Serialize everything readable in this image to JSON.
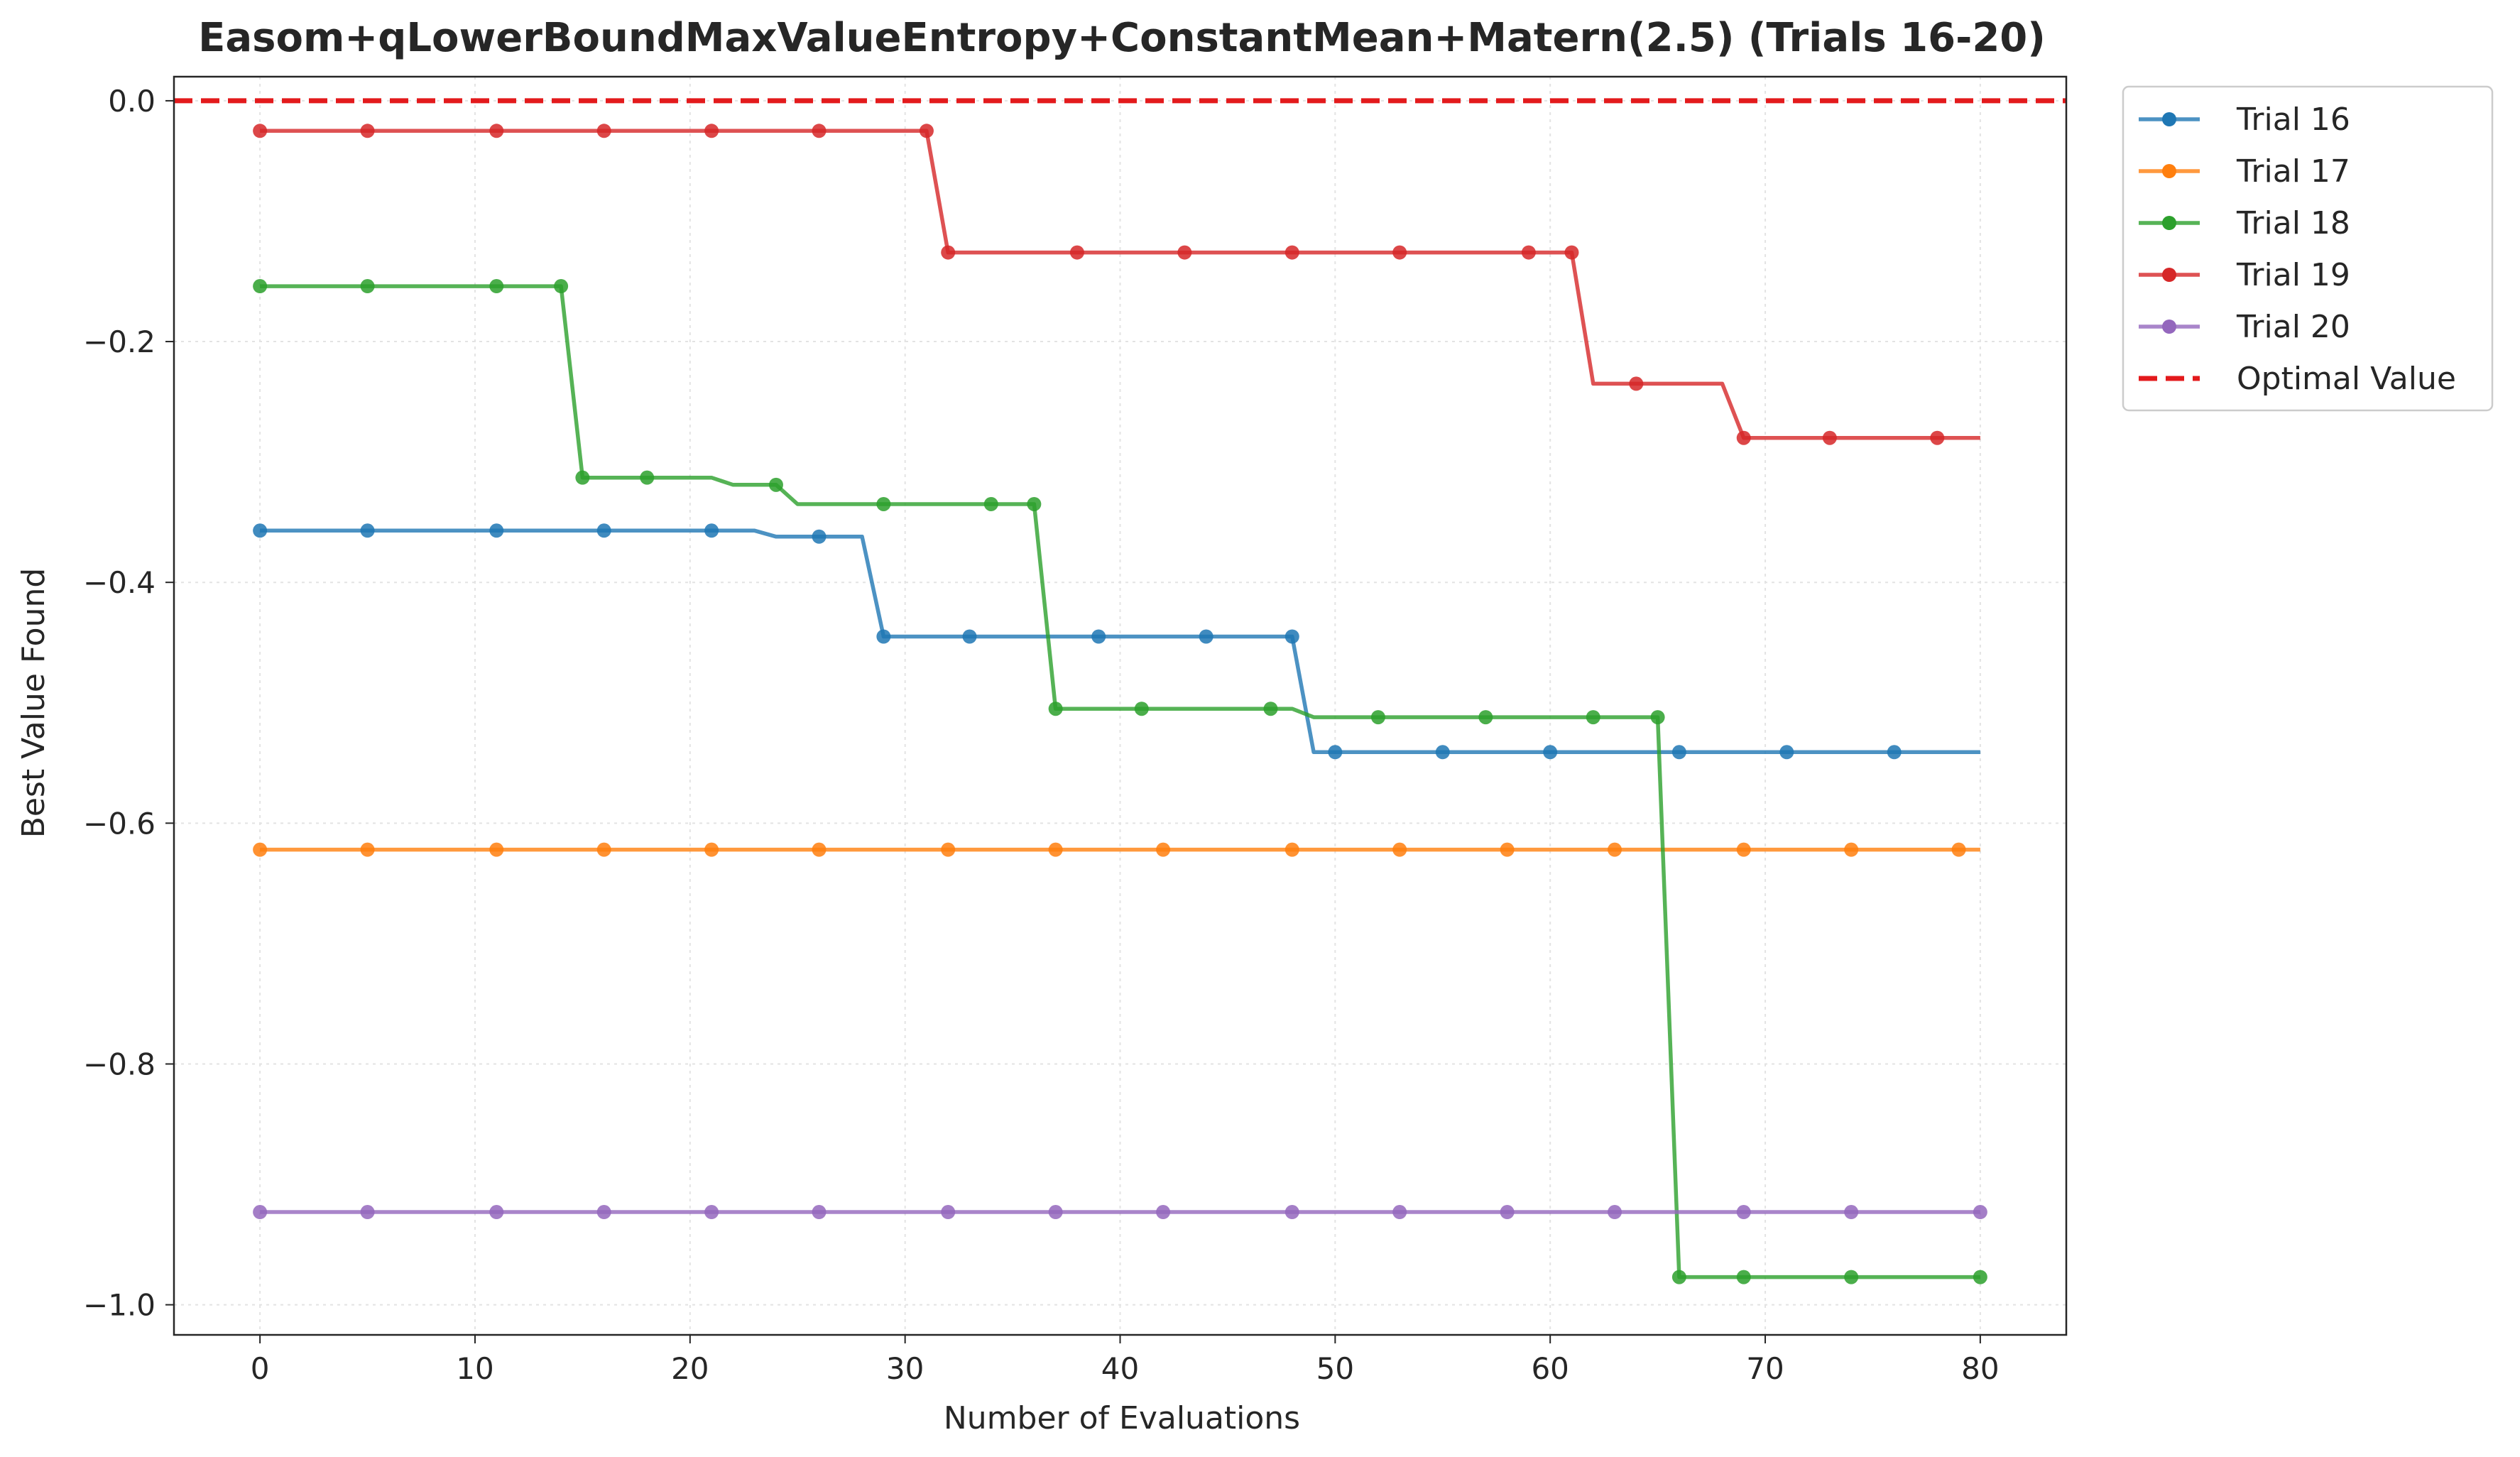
{
  "chart_data": {
    "type": "line",
    "title": "Easom+qLowerBoundMaxValueEntropy+ConstantMean+Matern(2.5) (Trials 16-20)",
    "xlabel": "Number of Evaluations",
    "ylabel": "Best Value Found",
    "xlim": [
      -4,
      84
    ],
    "ylim": [
      -1.025,
      0.02
    ],
    "x_ticks": [
      0,
      10,
      20,
      30,
      40,
      50,
      60,
      70,
      80
    ],
    "y_ticks": [
      0.0,
      -0.2,
      -0.4,
      -0.6,
      -0.8,
      -1.0
    ],
    "x_tick_labels": [
      "0",
      "10",
      "20",
      "30",
      "40",
      "50",
      "60",
      "70",
      "80"
    ],
    "y_tick_labels": [
      "0.0",
      "−0.2",
      "−0.4",
      "−0.6",
      "−0.8",
      "−1.0"
    ],
    "grid": true,
    "legend_position": "outside-top-right",
    "series": [
      {
        "name": "Trial 16",
        "color": "#1f77b4",
        "steps": [
          [
            0,
            -0.357
          ],
          [
            23,
            -0.357
          ],
          [
            24,
            -0.362
          ],
          [
            28,
            -0.362
          ],
          [
            29,
            -0.445
          ],
          [
            48,
            -0.445
          ],
          [
            49,
            -0.541
          ],
          [
            80,
            -0.541
          ]
        ],
        "markers": [
          [
            0,
            -0.357
          ],
          [
            5,
            -0.357
          ],
          [
            11,
            -0.357
          ],
          [
            16,
            -0.357
          ],
          [
            21,
            -0.357
          ],
          [
            26,
            -0.362
          ],
          [
            29,
            -0.445
          ],
          [
            33,
            -0.445
          ],
          [
            39,
            -0.445
          ],
          [
            44,
            -0.445
          ],
          [
            48,
            -0.445
          ],
          [
            50,
            -0.541
          ],
          [
            55,
            -0.541
          ],
          [
            60,
            -0.541
          ],
          [
            66,
            -0.541
          ],
          [
            71,
            -0.541
          ],
          [
            76,
            -0.541
          ]
        ]
      },
      {
        "name": "Trial 17",
        "color": "#ff7f0e",
        "steps": [
          [
            0,
            -0.622
          ],
          [
            80,
            -0.622
          ]
        ],
        "markers": [
          [
            0,
            -0.622
          ],
          [
            5,
            -0.622
          ],
          [
            11,
            -0.622
          ],
          [
            16,
            -0.622
          ],
          [
            21,
            -0.622
          ],
          [
            26,
            -0.622
          ],
          [
            32,
            -0.622
          ],
          [
            37,
            -0.622
          ],
          [
            42,
            -0.622
          ],
          [
            48,
            -0.622
          ],
          [
            53,
            -0.622
          ],
          [
            58,
            -0.622
          ],
          [
            63,
            -0.622
          ],
          [
            69,
            -0.622
          ],
          [
            74,
            -0.622
          ],
          [
            79,
            -0.622
          ]
        ]
      },
      {
        "name": "Trial 18",
        "color": "#2ca02c",
        "steps": [
          [
            0,
            -0.154
          ],
          [
            14,
            -0.154
          ],
          [
            15,
            -0.313
          ],
          [
            21,
            -0.313
          ],
          [
            22,
            -0.319
          ],
          [
            24,
            -0.319
          ],
          [
            25,
            -0.335
          ],
          [
            36,
            -0.335
          ],
          [
            37,
            -0.505
          ],
          [
            47,
            -0.505
          ],
          [
            48,
            -0.505
          ],
          [
            49,
            -0.512
          ],
          [
            65,
            -0.512
          ],
          [
            66,
            -0.977
          ],
          [
            80,
            -0.977
          ]
        ],
        "markers": [
          [
            0,
            -0.154
          ],
          [
            5,
            -0.154
          ],
          [
            11,
            -0.154
          ],
          [
            14,
            -0.154
          ],
          [
            15,
            -0.313
          ],
          [
            18,
            -0.313
          ],
          [
            24,
            -0.319
          ],
          [
            29,
            -0.335
          ],
          [
            34,
            -0.335
          ],
          [
            36,
            -0.335
          ],
          [
            37,
            -0.505
          ],
          [
            41,
            -0.505
          ],
          [
            47,
            -0.505
          ],
          [
            52,
            -0.512
          ],
          [
            57,
            -0.512
          ],
          [
            62,
            -0.512
          ],
          [
            65,
            -0.512
          ],
          [
            66,
            -0.977
          ],
          [
            69,
            -0.977
          ],
          [
            74,
            -0.977
          ],
          [
            80,
            -0.977
          ]
        ]
      },
      {
        "name": "Trial 19",
        "color": "#d62728",
        "steps": [
          [
            0,
            -0.025
          ],
          [
            31,
            -0.025
          ],
          [
            32,
            -0.126
          ],
          [
            61,
            -0.126
          ],
          [
            62,
            -0.235
          ],
          [
            68,
            -0.235
          ],
          [
            69,
            -0.28
          ],
          [
            80,
            -0.28
          ]
        ],
        "markers": [
          [
            0,
            -0.025
          ],
          [
            5,
            -0.025
          ],
          [
            11,
            -0.025
          ],
          [
            16,
            -0.025
          ],
          [
            21,
            -0.025
          ],
          [
            26,
            -0.025
          ],
          [
            31,
            -0.025
          ],
          [
            32,
            -0.126
          ],
          [
            38,
            -0.126
          ],
          [
            43,
            -0.126
          ],
          [
            48,
            -0.126
          ],
          [
            53,
            -0.126
          ],
          [
            59,
            -0.126
          ],
          [
            61,
            -0.126
          ],
          [
            64,
            -0.235
          ],
          [
            69,
            -0.28
          ],
          [
            73,
            -0.28
          ],
          [
            78,
            -0.28
          ]
        ]
      },
      {
        "name": "Trial 20",
        "color": "#9467bd",
        "steps": [
          [
            0,
            -0.923
          ],
          [
            80,
            -0.923
          ]
        ],
        "markers": [
          [
            0,
            -0.923
          ],
          [
            5,
            -0.923
          ],
          [
            11,
            -0.923
          ],
          [
            16,
            -0.923
          ],
          [
            21,
            -0.923
          ],
          [
            26,
            -0.923
          ],
          [
            32,
            -0.923
          ],
          [
            37,
            -0.923
          ],
          [
            42,
            -0.923
          ],
          [
            48,
            -0.923
          ],
          [
            53,
            -0.923
          ],
          [
            58,
            -0.923
          ],
          [
            63,
            -0.923
          ],
          [
            69,
            -0.923
          ],
          [
            74,
            -0.923
          ],
          [
            80,
            -0.923
          ]
        ]
      }
    ],
    "reference_line": {
      "name": "Optimal Value",
      "y": 0.0,
      "color": "#e31a1c",
      "style": "dashed"
    }
  }
}
